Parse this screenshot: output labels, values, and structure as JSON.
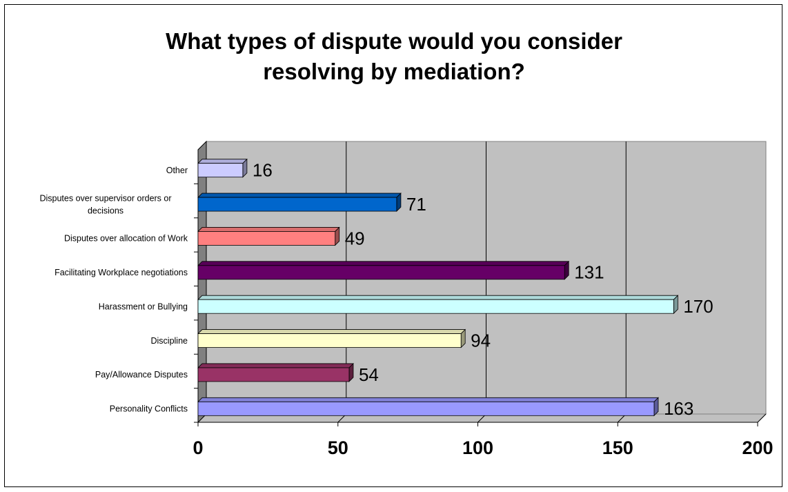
{
  "chart_data": {
    "type": "bar",
    "orientation": "horizontal",
    "style": "3d",
    "title_lines": [
      "What types of dispute would you consider",
      "resolving by mediation?"
    ],
    "xlim": [
      0,
      200
    ],
    "x_ticks": [
      "0",
      "50",
      "100",
      "150",
      "200"
    ],
    "grid": true,
    "legend": "none",
    "categories": [
      "Personality Conflicts",
      "Pay/Allowance Disputes",
      "Discipline",
      "Harassment or Bullying",
      "Facilitating Workplace negotiations",
      "Disputes over allocation of Work",
      "Disputes over supervisor orders or decisions",
      "Other"
    ],
    "values": [
      163,
      54,
      94,
      170,
      131,
      49,
      71,
      16
    ],
    "value_labels": [
      "163",
      "54",
      "94",
      "170",
      "131",
      "49",
      "71",
      "16"
    ],
    "colors": [
      "#9999ff",
      "#993366",
      "#ffffcc",
      "#ccffff",
      "#660066",
      "#ff8080",
      "#0066cc",
      "#ccccff"
    ],
    "plot_background": "#c0c0c0"
  }
}
